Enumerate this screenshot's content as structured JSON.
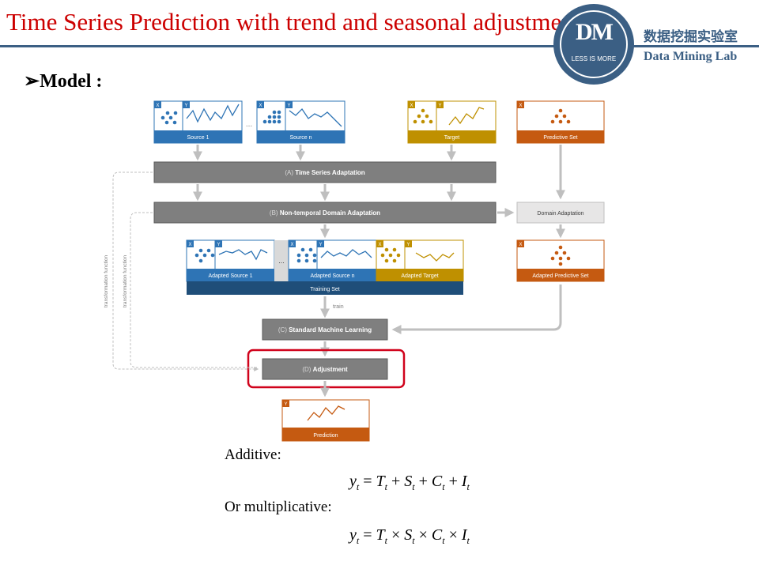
{
  "slide": {
    "title": "Time Series Prediction with trend and seasonal adjustment",
    "section": "Model :",
    "bullet_glyph": "➢"
  },
  "logo": {
    "initials": "DM",
    "motto": "LESS IS MORE",
    "lab_cn": "数据挖掘实验室",
    "lab_en": "Data Mining Lab"
  },
  "diagram": {
    "x_tag": "X",
    "y_tag": "Y",
    "ellipsis": "...",
    "sources": [
      "Source 1",
      "Source n"
    ],
    "target": "Target",
    "predictive_set": "Predictive Set",
    "step_a_prefix": "(A)",
    "step_a": "Time Series Adaptation",
    "step_b_prefix": "(B)",
    "step_b": "Non-temporal Domain Adaptation",
    "domain_adaptation": "Domain Adaptation",
    "adapted_sources": [
      "Adapted Source 1",
      "Adapted Source n"
    ],
    "adapted_target": "Adapted Target",
    "adapted_predictive_set": "Adapted Predictive Set",
    "training_set": "Training Set",
    "train_label": "train",
    "step_c_prefix": "(C)",
    "step_c": "Standard Machine Learning",
    "step_d_prefix": "(D)",
    "step_d": "Adjustment",
    "prediction": "Prediction",
    "transformation_function": "transformation function"
  },
  "formulas": {
    "additive_label": "Additive:",
    "multiplicative_label": "Or multiplicative:",
    "lhs": "y",
    "terms": [
      "T",
      "S",
      "C",
      "I"
    ],
    "sub": "t",
    "eq": "=",
    "plus": "+",
    "times": "×"
  },
  "colors": {
    "title": "#cc0000",
    "brand": "#3b5f84",
    "source": "#2e74b5",
    "target": "#bf9000",
    "predictive": "#c55a11",
    "step": "#7f7f7f",
    "training": "#1f4e79",
    "highlight": "#d0021b"
  }
}
